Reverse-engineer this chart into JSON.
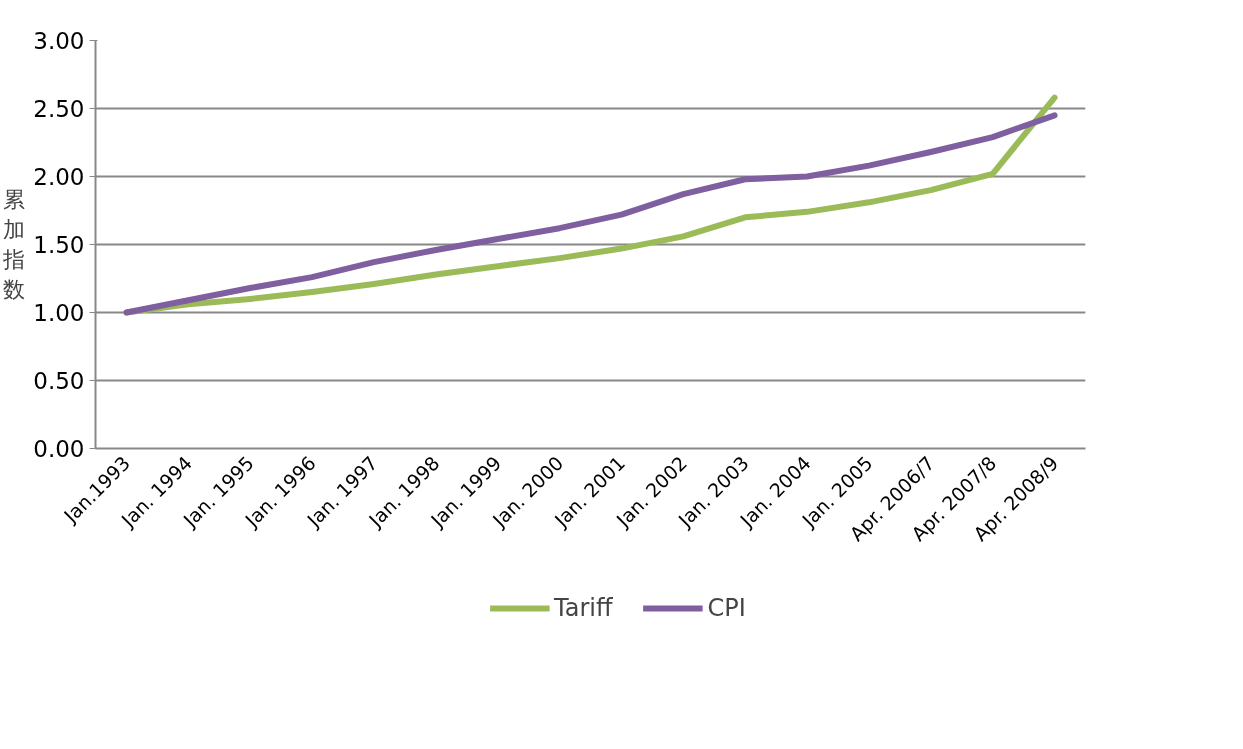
{
  "chart_data": {
    "type": "line",
    "ylabel": "累加指数",
    "categories": [
      "Jan.1993",
      "Jan. 1994",
      "Jan. 1995",
      "Jan. 1996",
      "Jan. 1997",
      "Jan. 1998",
      "Jan. 1999",
      "Jan. 2000",
      "Jan. 2001",
      "Jan. 2002",
      "Jan. 2003",
      "Jan. 2004",
      "Jan. 2005",
      "Apr. 2006/7",
      "Apr. 2007/8",
      "Apr. 2008/9"
    ],
    "series": [
      {
        "name": "Tariff",
        "color": "#9bbb59",
        "values": [
          1.0,
          1.06,
          1.1,
          1.15,
          1.21,
          1.28,
          1.34,
          1.4,
          1.47,
          1.56,
          1.7,
          1.74,
          1.81,
          1.9,
          2.02,
          2.58
        ]
      },
      {
        "name": "CPI",
        "color": "#7f5f9f",
        "values": [
          1.0,
          1.09,
          1.18,
          1.26,
          1.37,
          1.46,
          1.54,
          1.62,
          1.72,
          1.87,
          1.98,
          2.0,
          2.08,
          2.18,
          2.29,
          2.45
        ]
      }
    ],
    "ylim": [
      0,
      3
    ],
    "yticks": [
      {
        "value": 0,
        "label": "0.00"
      },
      {
        "value": 0.5,
        "label": "0.50"
      },
      {
        "value": 1,
        "label": "1.00"
      },
      {
        "value": 1.5,
        "label": "1.50"
      },
      {
        "value": 2,
        "label": "2.00"
      },
      {
        "value": 2.5,
        "label": "2.50"
      },
      {
        "value": 3,
        "label": "3.00"
      }
    ],
    "grid": "y",
    "legend": "bottom",
    "marker": "none",
    "line_style": "solid"
  }
}
